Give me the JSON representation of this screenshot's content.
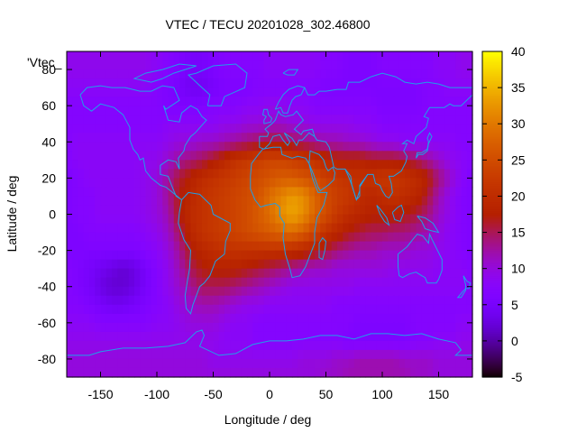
{
  "chart_data": {
    "type": "heatmap",
    "title": "VTEC / TECU 20201028_302.46800",
    "xlabel": "Longitude / deg",
    "ylabel": "Latitude / deg",
    "series_label": "'Vtec_",
    "xlim": [
      -180,
      180
    ],
    "ylim": [
      -90,
      90
    ],
    "x_ticks": [
      -150,
      -100,
      -50,
      0,
      50,
      100,
      150
    ],
    "y_ticks": [
      -80,
      -60,
      -40,
      -20,
      0,
      20,
      40,
      60,
      80
    ],
    "x_tick_labels": [
      "-150",
      "-100",
      "-50",
      "0",
      "50",
      "100",
      "150"
    ],
    "y_tick_labels": [
      "-80",
      "-60",
      "-40",
      "-20",
      "0",
      "20",
      "40",
      "60",
      "80"
    ],
    "colorbar": {
      "range": [
        -5,
        40
      ],
      "ticks": [
        -5,
        0,
        5,
        10,
        15,
        20,
        25,
        30,
        35,
        40
      ],
      "tick_labels": [
        "-5",
        "0",
        "5",
        "10",
        "15",
        "20",
        "25",
        "30",
        "35",
        "40"
      ],
      "colormap": "gnuplot-rgbformulae-7-5-15"
    },
    "vtec_grid": {
      "lon_step": 10,
      "lat_step": 10,
      "lons": [
        -180,
        -170,
        -160,
        -150,
        -140,
        -130,
        -120,
        -110,
        -100,
        -90,
        -80,
        -70,
        -60,
        -50,
        -40,
        -30,
        -20,
        -10,
        0,
        10,
        20,
        30,
        40,
        50,
        60,
        70,
        80,
        90,
        100,
        110,
        120,
        130,
        140,
        150,
        160,
        170
      ],
      "lats": [
        80,
        70,
        60,
        50,
        40,
        30,
        20,
        10,
        0,
        -10,
        -20,
        -30,
        -40,
        -50,
        -60,
        -70,
        -80,
        -90
      ],
      "values": [
        [
          9,
          9,
          9,
          9,
          9,
          9,
          9,
          9,
          8,
          7,
          6,
          5,
          5,
          6,
          7,
          7,
          7,
          7,
          8,
          8,
          8,
          8,
          8,
          7,
          7,
          6,
          6,
          6,
          7,
          7,
          7,
          7,
          7,
          8,
          8,
          9
        ],
        [
          8,
          8,
          8,
          8,
          8,
          8,
          8,
          8,
          7,
          6,
          5,
          4,
          4,
          5,
          6,
          6,
          6,
          7,
          7,
          7,
          7,
          7,
          7,
          6,
          6,
          6,
          6,
          6,
          6,
          6,
          6,
          6,
          7,
          7,
          8,
          8
        ],
        [
          7,
          7,
          7,
          7,
          7,
          7,
          7,
          7,
          7,
          6,
          6,
          6,
          6,
          7,
          7,
          7,
          8,
          8,
          9,
          9,
          8,
          8,
          7,
          7,
          7,
          7,
          7,
          7,
          6,
          6,
          6,
          6,
          7,
          7,
          7,
          7
        ],
        [
          7,
          7,
          7,
          7,
          7,
          7,
          7,
          7,
          7,
          8,
          8,
          8,
          8,
          8,
          9,
          9,
          10,
          10,
          11,
          11,
          10,
          10,
          9,
          9,
          9,
          9,
          8,
          8,
          7,
          7,
          7,
          7,
          7,
          7,
          7,
          7
        ],
        [
          7,
          8,
          8,
          8,
          8,
          8,
          8,
          8,
          8,
          9,
          10,
          10,
          11,
          11,
          12,
          13,
          14,
          15,
          16,
          16,
          15,
          14,
          13,
          12,
          12,
          11,
          11,
          10,
          9,
          9,
          8,
          8,
          8,
          8,
          8,
          7
        ],
        [
          7,
          8,
          8,
          8,
          8,
          8,
          8,
          9,
          9,
          11,
          13,
          14,
          15,
          17,
          19,
          21,
          22,
          23,
          24,
          24,
          23,
          22,
          21,
          19,
          18,
          18,
          18,
          17,
          17,
          17,
          16,
          15,
          13,
          11,
          9,
          8
        ],
        [
          6,
          7,
          8,
          8,
          8,
          8,
          8,
          9,
          10,
          13,
          16,
          18,
          20,
          21,
          22,
          23,
          24,
          25,
          26,
          27,
          27,
          26,
          25,
          23,
          22,
          21,
          21,
          21,
          22,
          22,
          21,
          20,
          18,
          14,
          11,
          8
        ],
        [
          6,
          7,
          7,
          8,
          8,
          8,
          8,
          9,
          10,
          13,
          17,
          19,
          21,
          22,
          23,
          24,
          25,
          26,
          29,
          31,
          33,
          32,
          28,
          25,
          23,
          22,
          20,
          19,
          20,
          21,
          20,
          19,
          16,
          12,
          9,
          7
        ],
        [
          6,
          7,
          7,
          8,
          8,
          8,
          8,
          9,
          10,
          12,
          17,
          20,
          21,
          22,
          23,
          24,
          25,
          27,
          29,
          32,
          34,
          32,
          28,
          25,
          22,
          20,
          19,
          18,
          18,
          18,
          17,
          16,
          14,
          11,
          9,
          7
        ],
        [
          6,
          6,
          7,
          7,
          7,
          7,
          7,
          8,
          9,
          11,
          15,
          19,
          21,
          22,
          23,
          24,
          25,
          26,
          27,
          28,
          29,
          27,
          24,
          21,
          19,
          17,
          16,
          15,
          15,
          14,
          14,
          13,
          12,
          10,
          8,
          7
        ],
        [
          6,
          6,
          6,
          6,
          6,
          6,
          6,
          7,
          8,
          10,
          13,
          17,
          19,
          20,
          21,
          21,
          21,
          21,
          21,
          21,
          20,
          19,
          18,
          16,
          14,
          13,
          12,
          12,
          11,
          11,
          11,
          10,
          10,
          9,
          8,
          7
        ],
        [
          7,
          6,
          5,
          4,
          3,
          2,
          3,
          5,
          7,
          9,
          12,
          15,
          17,
          18,
          18,
          18,
          17,
          16,
          15,
          14,
          13,
          12,
          11,
          11,
          10,
          10,
          10,
          10,
          10,
          9,
          9,
          9,
          9,
          8,
          8,
          8
        ],
        [
          7,
          6,
          5,
          3,
          2,
          2,
          3,
          5,
          7,
          9,
          11,
          13,
          15,
          15,
          15,
          14,
          13,
          12,
          11,
          10,
          9,
          9,
          9,
          9,
          9,
          9,
          8,
          8,
          8,
          8,
          8,
          8,
          8,
          8,
          8,
          8
        ],
        [
          7,
          7,
          6,
          5,
          4,
          4,
          5,
          6,
          7,
          8,
          10,
          11,
          12,
          12,
          11,
          10,
          9,
          9,
          8,
          8,
          8,
          8,
          8,
          8,
          7,
          7,
          7,
          7,
          7,
          7,
          7,
          7,
          7,
          7,
          7,
          7
        ],
        [
          8,
          8,
          8,
          7,
          7,
          7,
          7,
          7,
          8,
          8,
          9,
          10,
          10,
          10,
          9,
          8,
          8,
          7,
          7,
          7,
          7,
          7,
          7,
          7,
          7,
          7,
          6,
          6,
          6,
          6,
          6,
          7,
          7,
          7,
          7,
          8
        ],
        [
          9,
          9,
          9,
          9,
          9,
          9,
          9,
          9,
          9,
          9,
          9,
          9,
          9,
          9,
          8,
          8,
          8,
          7,
          7,
          7,
          7,
          7,
          7,
          7,
          7,
          6,
          6,
          6,
          6,
          6,
          6,
          7,
          7,
          8,
          8,
          9
        ],
        [
          10,
          10,
          10,
          10,
          10,
          10,
          10,
          10,
          10,
          10,
          10,
          10,
          10,
          9,
          9,
          9,
          9,
          9,
          9,
          9,
          9,
          10,
          10,
          10,
          11,
          11,
          12,
          12,
          12,
          12,
          11,
          11,
          11,
          10,
          10,
          10
        ],
        [
          10,
          10,
          10,
          10,
          10,
          10,
          10,
          10,
          10,
          10,
          10,
          10,
          10,
          10,
          10,
          10,
          10,
          10,
          10,
          10,
          10,
          10,
          10,
          11,
          11,
          12,
          12,
          12,
          12,
          12,
          12,
          11,
          11,
          10,
          10,
          10
        ]
      ]
    },
    "colors": {
      "coastline": "#1fa0e8",
      "frame": "#000000"
    }
  }
}
